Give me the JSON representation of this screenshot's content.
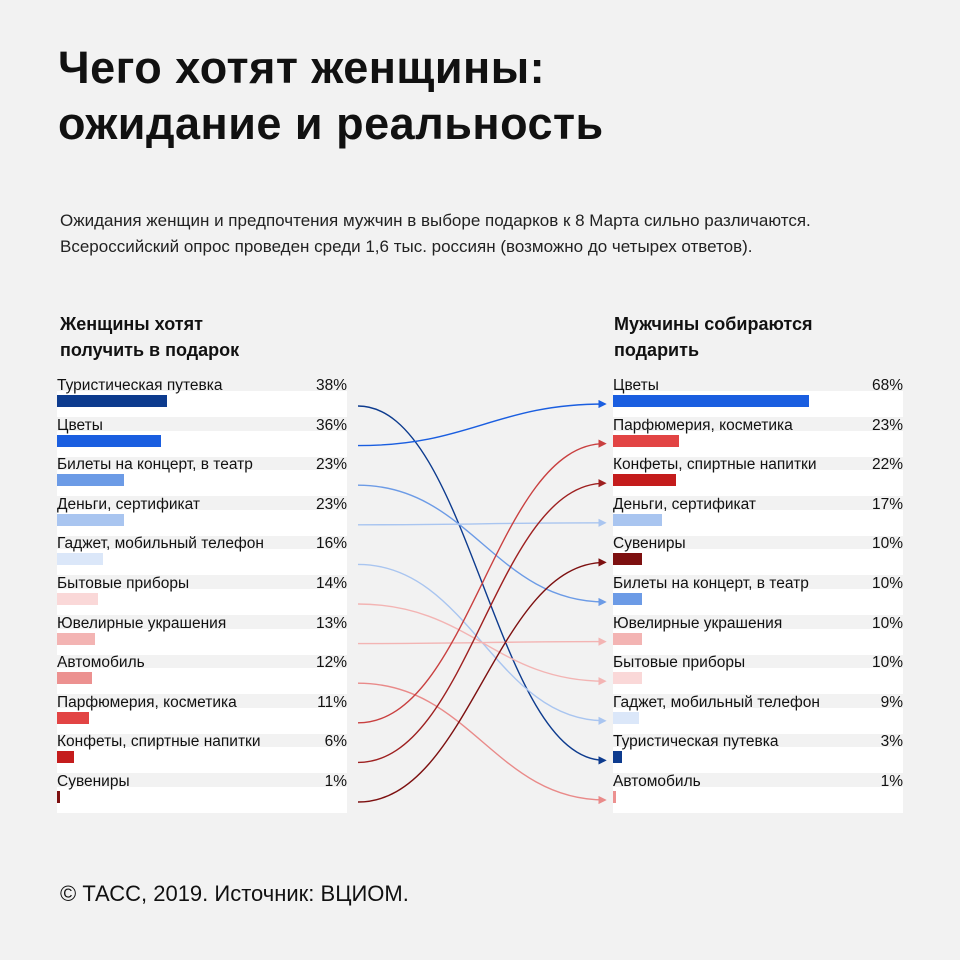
{
  "title_line1": "Чего хотят женщины:",
  "title_line2": "ожидание и реальность",
  "subtitle": "Ожидания женщин и предпочтения мужчин в выборе подарков к 8 Марта сильно различаются. Всероссийский опрос проведен среди 1,6 тыс. россиян (возможно до четырех ответов).",
  "footer": "© ТАСС, 2019. Источник: ВЦИОМ.",
  "chart_data": {
    "type": "bar",
    "unit": "%",
    "left": {
      "title_line1": "Женщины хотят",
      "title_line2": "получить в подарок",
      "items": [
        {
          "label": "Туристическая путевка",
          "value": 38,
          "display": "38%",
          "color": "#0d3b8e"
        },
        {
          "label": "Цветы",
          "value": 36,
          "display": "36%",
          "color": "#1a5ee0"
        },
        {
          "label": "Билеты на концерт, в театр",
          "value": 23,
          "display": "23%",
          "color": "#6c9be6"
        },
        {
          "label": "Деньги, сертификат",
          "value": 23,
          "display": "23%",
          "color": "#a9c5f0"
        },
        {
          "label": "Гаджет, мобильный телефон",
          "value": 16,
          "display": "16%",
          "color": "#dbe7f9"
        },
        {
          "label": "Бытовые приборы",
          "value": 14,
          "display": "14%",
          "color": "#fad8d8"
        },
        {
          "label": "Ювелирные украшения",
          "value": 13,
          "display": "13%",
          "color": "#f3b4b3"
        },
        {
          "label": "Автомобиль",
          "value": 12,
          "display": "12%",
          "color": "#ec9190"
        },
        {
          "label": "Парфюмерия, косметика",
          "value": 11,
          "display": "11%",
          "color": "#e24444"
        },
        {
          "label": "Конфеты, спиртные напитки",
          "value": 6,
          "display": "6%",
          "color": "#c41c1c"
        },
        {
          "label": "Сувениры",
          "value": 1,
          "display": "1%",
          "color": "#7d1010"
        }
      ]
    },
    "right": {
      "title_line1": "Мужчины собираются",
      "title_line2": "подарить",
      "items": [
        {
          "label": "Цветы",
          "value": 68,
          "display": "68%",
          "color": "#1a5ee0"
        },
        {
          "label": "Парфюмерия, косметика",
          "value": 23,
          "display": "23%",
          "color": "#e24444"
        },
        {
          "label": "Конфеты, спиртные напитки",
          "value": 22,
          "display": "22%",
          "color": "#c41c1c"
        },
        {
          "label": "Деньги, сертификат",
          "value": 17,
          "display": "17%",
          "color": "#a9c5f0"
        },
        {
          "label": "Сувениры",
          "value": 10,
          "display": "10%",
          "color": "#7d1010"
        },
        {
          "label": "Билеты на концерт, в театр",
          "value": 10,
          "display": "10%",
          "color": "#6c9be6"
        },
        {
          "label": "Ювелирные украшения",
          "value": 10,
          "display": "10%",
          "color": "#f3b4b3"
        },
        {
          "label": "Бытовые приборы",
          "value": 10,
          "display": "10%",
          "color": "#fad8d8"
        },
        {
          "label": "Гаджет, мобильный телефон",
          "value": 9,
          "display": "9%",
          "color": "#dbe7f9"
        },
        {
          "label": "Туристическая путевка",
          "value": 3,
          "display": "3%",
          "color": "#0d3b8e"
        },
        {
          "label": "Автомобиль",
          "value": 1,
          "display": "1%",
          "color": "#ec9190"
        }
      ]
    },
    "links": [
      {
        "from": 0,
        "to": 9,
        "color": "#0d3b8e"
      },
      {
        "from": 1,
        "to": 0,
        "color": "#1a5ee0"
      },
      {
        "from": 2,
        "to": 5,
        "color": "#6c9be6"
      },
      {
        "from": 3,
        "to": 3,
        "color": "#a9c5f0"
      },
      {
        "from": 4,
        "to": 8,
        "color": "#a9c5f0"
      },
      {
        "from": 5,
        "to": 7,
        "color": "#f3b4b3"
      },
      {
        "from": 6,
        "to": 6,
        "color": "#f3b4b3"
      },
      {
        "from": 7,
        "to": 10,
        "color": "#e98a89"
      },
      {
        "from": 8,
        "to": 1,
        "color": "#c94040"
      },
      {
        "from": 9,
        "to": 2,
        "color": "#9e2020"
      },
      {
        "from": 10,
        "to": 4,
        "color": "#7d1010"
      }
    ]
  }
}
